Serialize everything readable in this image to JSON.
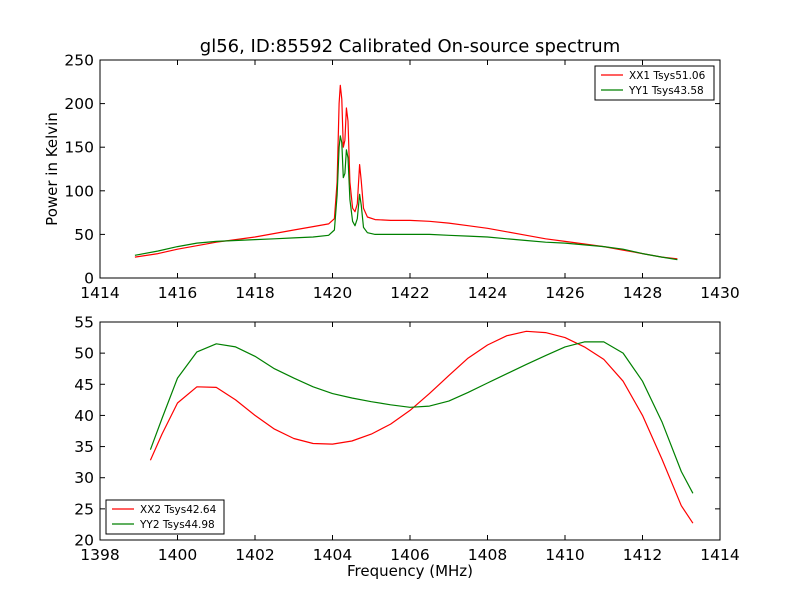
{
  "title": "gl56, ID:85592 Calibrated On-source spectrum",
  "chart_data": [
    {
      "type": "line",
      "ylabel": "Power in Kelvin",
      "xlabel": "",
      "xlim": [
        1414,
        1430
      ],
      "ylim": [
        0,
        250
      ],
      "xticks": [
        1414,
        1416,
        1418,
        1420,
        1422,
        1424,
        1426,
        1428,
        1430
      ],
      "yticks": [
        0,
        50,
        100,
        150,
        200,
        250
      ],
      "legend_position": "top-right",
      "series": [
        {
          "name": "XX1 Tsys51.06",
          "color": "#ff0000",
          "points": [
            [
              1414.9,
              24
            ],
            [
              1415.5,
              28
            ],
            [
              1416.0,
              33
            ],
            [
              1416.5,
              37
            ],
            [
              1417.0,
              41
            ],
            [
              1417.5,
              44
            ],
            [
              1418.0,
              47
            ],
            [
              1418.5,
              51
            ],
            [
              1419.0,
              55
            ],
            [
              1419.5,
              59
            ],
            [
              1419.9,
              62
            ],
            [
              1420.05,
              68
            ],
            [
              1420.12,
              110
            ],
            [
              1420.17,
              200
            ],
            [
              1420.2,
              221
            ],
            [
              1420.24,
              205
            ],
            [
              1420.28,
              150
            ],
            [
              1420.32,
              158
            ],
            [
              1420.36,
              195
            ],
            [
              1420.4,
              180
            ],
            [
              1420.45,
              110
            ],
            [
              1420.52,
              80
            ],
            [
              1420.58,
              76
            ],
            [
              1420.64,
              85
            ],
            [
              1420.7,
              130
            ],
            [
              1420.74,
              112
            ],
            [
              1420.8,
              80
            ],
            [
              1420.9,
              70
            ],
            [
              1421.1,
              67
            ],
            [
              1421.5,
              66
            ],
            [
              1422.0,
              66
            ],
            [
              1422.5,
              65
            ],
            [
              1423.0,
              63
            ],
            [
              1423.5,
              60
            ],
            [
              1424.0,
              57
            ],
            [
              1424.5,
              53
            ],
            [
              1425.0,
              49
            ],
            [
              1425.5,
              45
            ],
            [
              1426.0,
              42
            ],
            [
              1426.5,
              39
            ],
            [
              1427.0,
              36
            ],
            [
              1427.5,
              32
            ],
            [
              1428.0,
              28
            ],
            [
              1428.5,
              24
            ],
            [
              1428.9,
              22
            ]
          ]
        },
        {
          "name": "YY1 Tsys43.58",
          "color": "#008000",
          "points": [
            [
              1414.9,
              26
            ],
            [
              1415.5,
              31
            ],
            [
              1416.0,
              36
            ],
            [
              1416.5,
              40
            ],
            [
              1417.0,
              42
            ],
            [
              1417.5,
              43
            ],
            [
              1418.0,
              44
            ],
            [
              1418.5,
              45
            ],
            [
              1419.0,
              46
            ],
            [
              1419.5,
              47
            ],
            [
              1419.9,
              49
            ],
            [
              1420.05,
              55
            ],
            [
              1420.12,
              95
            ],
            [
              1420.17,
              150
            ],
            [
              1420.2,
              163
            ],
            [
              1420.24,
              155
            ],
            [
              1420.28,
              115
            ],
            [
              1420.32,
              120
            ],
            [
              1420.36,
              147
            ],
            [
              1420.4,
              138
            ],
            [
              1420.45,
              90
            ],
            [
              1420.52,
              65
            ],
            [
              1420.58,
              60
            ],
            [
              1420.64,
              68
            ],
            [
              1420.7,
              96
            ],
            [
              1420.74,
              84
            ],
            [
              1420.8,
              58
            ],
            [
              1420.9,
              52
            ],
            [
              1421.1,
              50
            ],
            [
              1421.5,
              50
            ],
            [
              1422.0,
              50
            ],
            [
              1422.5,
              50
            ],
            [
              1423.0,
              49
            ],
            [
              1423.5,
              48
            ],
            [
              1424.0,
              47
            ],
            [
              1424.5,
              45
            ],
            [
              1425.0,
              43
            ],
            [
              1425.5,
              41
            ],
            [
              1426.0,
              40
            ],
            [
              1426.5,
              38
            ],
            [
              1427.0,
              36
            ],
            [
              1427.5,
              33
            ],
            [
              1428.0,
              28
            ],
            [
              1428.5,
              24
            ],
            [
              1428.9,
              21
            ]
          ]
        }
      ]
    },
    {
      "type": "line",
      "xlabel": "Frequency (MHz)",
      "ylabel": "",
      "xlim": [
        1398,
        1414
      ],
      "ylim": [
        20,
        55
      ],
      "xticks": [
        1398,
        1400,
        1402,
        1404,
        1406,
        1408,
        1410,
        1412,
        1414
      ],
      "yticks": [
        20,
        25,
        30,
        35,
        40,
        45,
        50,
        55
      ],
      "legend_position": "bottom-left",
      "series": [
        {
          "name": "XX2 Tsys42.64",
          "color": "#ff0000",
          "points": [
            [
              1399.3,
              32.8
            ],
            [
              1399.6,
              37
            ],
            [
              1400.0,
              42
            ],
            [
              1400.5,
              44.6
            ],
            [
              1401.0,
              44.5
            ],
            [
              1401.5,
              42.5
            ],
            [
              1402.0,
              40
            ],
            [
              1402.5,
              37.8
            ],
            [
              1403.0,
              36.3
            ],
            [
              1403.5,
              35.5
            ],
            [
              1404.0,
              35.4
            ],
            [
              1404.5,
              35.9
            ],
            [
              1405.0,
              37
            ],
            [
              1405.5,
              38.6
            ],
            [
              1406.0,
              40.8
            ],
            [
              1406.5,
              43.5
            ],
            [
              1407.0,
              46.4
            ],
            [
              1407.5,
              49.2
            ],
            [
              1408.0,
              51.3
            ],
            [
              1408.5,
              52.8
            ],
            [
              1409.0,
              53.5
            ],
            [
              1409.5,
              53.3
            ],
            [
              1410.0,
              52.5
            ],
            [
              1410.5,
              51
            ],
            [
              1411.0,
              49
            ],
            [
              1411.5,
              45.5
            ],
            [
              1412.0,
              40
            ],
            [
              1412.5,
              33
            ],
            [
              1413.0,
              25.5
            ],
            [
              1413.3,
              22.7
            ]
          ]
        },
        {
          "name": "YY2 Tsys44.98",
          "color": "#008000",
          "points": [
            [
              1399.3,
              34.5
            ],
            [
              1399.6,
              39.5
            ],
            [
              1400.0,
              46
            ],
            [
              1400.5,
              50.2
            ],
            [
              1401.0,
              51.5
            ],
            [
              1401.5,
              51
            ],
            [
              1402.0,
              49.5
            ],
            [
              1402.5,
              47.5
            ],
            [
              1403.0,
              46
            ],
            [
              1403.5,
              44.6
            ],
            [
              1404.0,
              43.5
            ],
            [
              1404.5,
              42.8
            ],
            [
              1405.0,
              42.2
            ],
            [
              1405.5,
              41.7
            ],
            [
              1406.0,
              41.3
            ],
            [
              1406.5,
              41.5
            ],
            [
              1407.0,
              42.3
            ],
            [
              1407.5,
              43.7
            ],
            [
              1408.0,
              45.2
            ],
            [
              1408.5,
              46.7
            ],
            [
              1409.0,
              48.2
            ],
            [
              1409.5,
              49.6
            ],
            [
              1410.0,
              51
            ],
            [
              1410.5,
              51.8
            ],
            [
              1411.0,
              51.8
            ],
            [
              1411.5,
              50
            ],
            [
              1412.0,
              45.5
            ],
            [
              1412.5,
              39
            ],
            [
              1413.0,
              31
            ],
            [
              1413.3,
              27.5
            ]
          ]
        }
      ]
    }
  ]
}
